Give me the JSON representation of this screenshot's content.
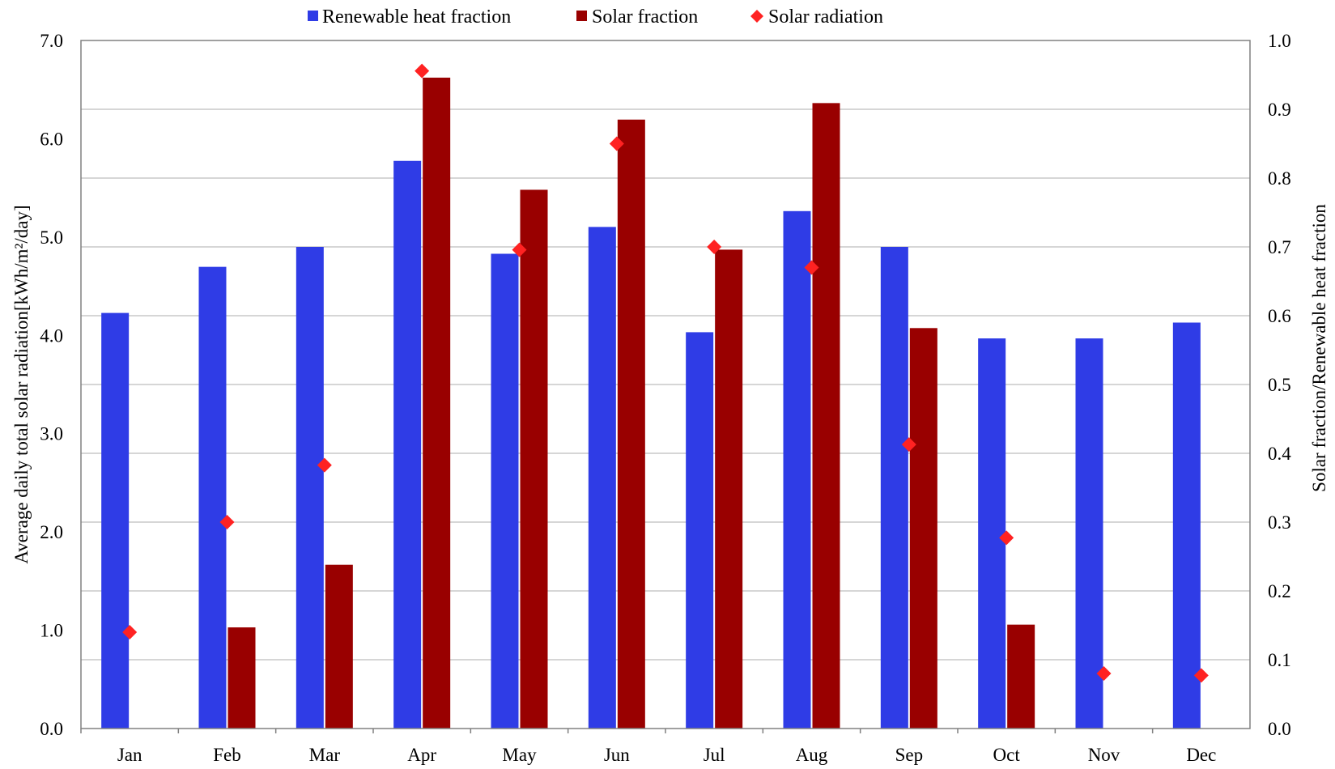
{
  "chart_data": {
    "type": "bar",
    "categories": [
      "Jan",
      "Feb",
      "Mar",
      "Apr",
      "May",
      "Jun",
      "Jul",
      "Aug",
      "Sep",
      "Oct",
      "Nov",
      "Dec"
    ],
    "series": [
      {
        "name": "Renewable heat fraction",
        "kind": "bar",
        "axis": "right",
        "color": "#2f3ce6",
        "values": [
          0.604,
          0.671,
          0.7,
          0.825,
          0.69,
          0.729,
          0.576,
          0.752,
          0.7,
          0.567,
          0.567,
          0.59
        ]
      },
      {
        "name": "Solar fraction",
        "kind": "bar",
        "axis": "right",
        "color": "#990000",
        "values": [
          0.0,
          0.147,
          0.238,
          0.946,
          0.783,
          0.885,
          0.696,
          0.909,
          0.582,
          0.151,
          0.0,
          0.0
        ]
      },
      {
        "name": "Solar radiation",
        "kind": "marker",
        "axis": "left",
        "color": "#ff2222",
        "values": [
          0.98,
          2.1,
          2.68,
          6.69,
          4.87,
          5.95,
          4.9,
          4.69,
          2.89,
          1.94,
          0.56,
          0.54
        ]
      }
    ],
    "ylabel": "Average daily total solar radiation[kWh/m²/day]",
    "y2label": "Solar fraction/Renewable heat fraction",
    "ylim": [
      0,
      7.0
    ],
    "y2lim": [
      0,
      1.0
    ],
    "yticks": [
      "0.0",
      "1.0",
      "2.0",
      "3.0",
      "4.0",
      "5.0",
      "6.0",
      "7.0"
    ],
    "y2ticks": [
      "0.0",
      "0.1",
      "0.2",
      "0.3",
      "0.4",
      "0.5",
      "0.6",
      "0.7",
      "0.8",
      "0.9",
      "1.0"
    ],
    "grid": true,
    "legend_position": "top"
  }
}
